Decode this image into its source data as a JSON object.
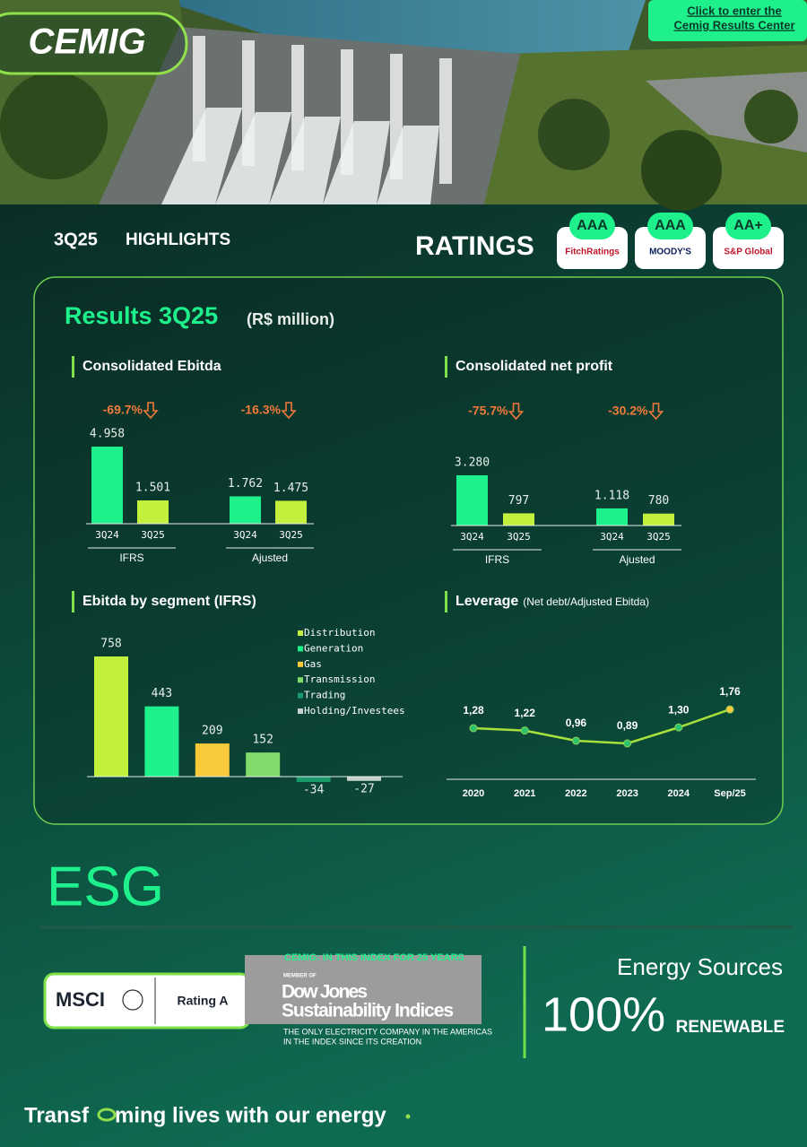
{
  "header": {
    "logo": "CEMIG",
    "link": [
      "Click to enter the",
      "Cemig Results Center"
    ]
  },
  "highlights": {
    "period": "3Q25",
    "title": "HIGHLIGHTS"
  },
  "ratings": {
    "title": "RATINGS",
    "agencies": [
      {
        "rating": "AAA",
        "name": "FitchRatings"
      },
      {
        "rating": "AAA",
        "name": "MOODY'S"
      },
      {
        "rating": "AA+",
        "name": "S&P Global"
      }
    ]
  },
  "results": {
    "title": "Results 3Q25",
    "unit": "(R$ million)"
  },
  "chart_data": [
    {
      "type": "bar",
      "title": "Consolidated Ebitda",
      "categories": [
        "3Q24",
        "3Q25",
        "3Q24",
        "3Q25"
      ],
      "values": [
        4958,
        1501,
        1762,
        1475
      ],
      "value_labels": [
        "4.958",
        "1.501",
        "1.762",
        "1.475"
      ],
      "colors": [
        "#1ef08c",
        "#c2f03c",
        "#1ef08c",
        "#c2f03c"
      ],
      "groups": [
        "IFRS",
        "Ajusted"
      ],
      "changes": [
        "-69.7%",
        "-16.3%"
      ]
    },
    {
      "type": "bar",
      "title": "Consolidated net profit",
      "categories": [
        "3Q24",
        "3Q25",
        "3Q24",
        "3Q25"
      ],
      "values": [
        3280,
        797,
        1118,
        780
      ],
      "value_labels": [
        "3.280",
        "797",
        "1.118",
        "780"
      ],
      "colors": [
        "#1ef08c",
        "#c2f03c",
        "#1ef08c",
        "#c2f03c"
      ],
      "groups": [
        "IFRS",
        "Ajusted"
      ],
      "changes": [
        "-75.7%",
        "-30.2%"
      ]
    },
    {
      "type": "bar",
      "title": "Ebitda by segment (IFRS)",
      "categories": [
        "Distribution",
        "Generation",
        "Gas",
        "Transmission",
        "Trading",
        "Holding/Investees"
      ],
      "values": [
        758,
        443,
        209,
        152,
        -34,
        -27
      ],
      "colors": [
        "#c2f03c",
        "#1ef08c",
        "#f8c93a",
        "#7fdc6a",
        "#1a9a6a",
        "#c8d0cc"
      ],
      "legend": true
    },
    {
      "type": "line",
      "title": "Leverage",
      "subtitle": "(Net debt/Adjusted Ebitda)",
      "categories": [
        "2020",
        "2021",
        "2022",
        "2023",
        "2024",
        "Sep/25"
      ],
      "values": [
        1.28,
        1.22,
        0.96,
        0.89,
        1.3,
        1.76
      ],
      "value_labels": [
        "1,28",
        "1,22",
        "0,96",
        "0,89",
        "1,30",
        "1,76"
      ],
      "color": "#a6e03a",
      "marker_colors": [
        "#2bc46a",
        "#2bc46a",
        "#2bc46a",
        "#2bc46a",
        "#2bc46a",
        "#f8c93a"
      ]
    }
  ],
  "esg": {
    "title": "ESG",
    "msci": {
      "name": "MSCI",
      "rating": "Rating A"
    },
    "djsi": {
      "note": "CEMIG: IN THIS INDEX FOR 25 YEARS",
      "member": "MEMBER OF",
      "line1": "Dow Jones",
      "line2": "Sustainability Indices",
      "caption": [
        "THE ONLY ELECTRICITY COMPANY IN THE AMERICAS",
        "IN THE INDEX SINCE ITS CREATION"
      ]
    },
    "energy": {
      "title": "Energy Sources",
      "share": "100%",
      "label": "RENEWABLE"
    }
  },
  "footer": {
    "before": "Transf",
    "after": "ming lives with our energy"
  }
}
